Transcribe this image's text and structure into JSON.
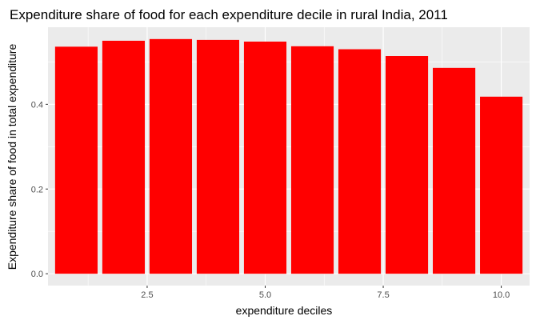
{
  "chart_data": {
    "type": "bar",
    "title": "Expenditure share of food for each expenditure decile in rural India, 2011",
    "xlabel": "expenditure deciles",
    "ylabel": "Expenditure share of food in total expenditure",
    "x": [
      1,
      2,
      3,
      4,
      5,
      6,
      7,
      8,
      9,
      10
    ],
    "values": [
      0.536,
      0.55,
      0.554,
      0.552,
      0.548,
      0.537,
      0.53,
      0.514,
      0.486,
      0.418
    ],
    "xlim": [
      0.4,
      10.6
    ],
    "ylim": [
      -0.028,
      0.582
    ],
    "xticks": [
      2.5,
      5.0,
      7.5,
      10.0
    ],
    "xtick_labels": [
      "2.5",
      "5.0",
      "7.5",
      "10.0"
    ],
    "yticks": [
      0.0,
      0.2,
      0.4
    ],
    "ytick_labels": [
      "0.0",
      "0.2",
      "0.4"
    ],
    "grid": true,
    "legend": "none",
    "colors": {
      "bar": "#ff0000",
      "panel": "#ebebeb",
      "grid": "#ffffff"
    }
  }
}
